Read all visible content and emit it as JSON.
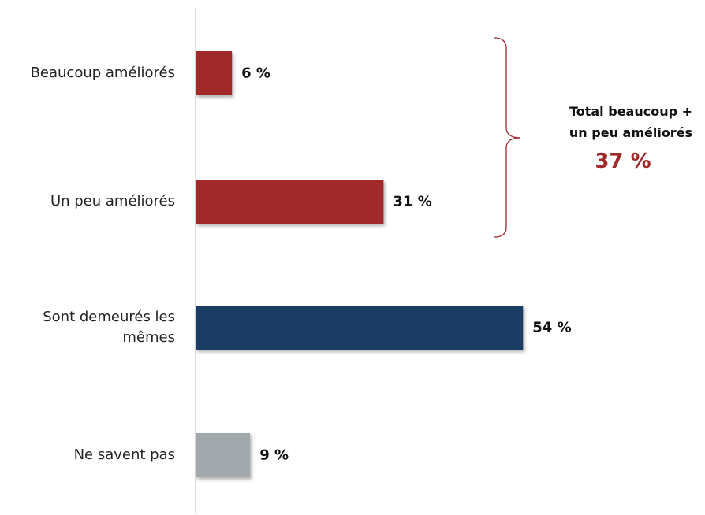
{
  "chart_data": {
    "type": "bar",
    "orientation": "horizontal",
    "categories": [
      "Beaucoup améliorés",
      "Un peu améliorés",
      "Sont demeurés les\nmêmes",
      "Ne savent pas"
    ],
    "values": [
      6,
      31,
      54,
      9
    ],
    "value_labels": [
      "6 %",
      "31 %",
      "54 %",
      "9 %"
    ],
    "colors": [
      "#a0292b",
      "#a0292b",
      "#1f3d63",
      "#a2a9ad"
    ],
    "annotation": {
      "text": [
        "Total beaucoup +",
        "un peu améliorés"
      ],
      "value": 37,
      "value_label": "37 %",
      "color": "#a0292b"
    }
  }
}
